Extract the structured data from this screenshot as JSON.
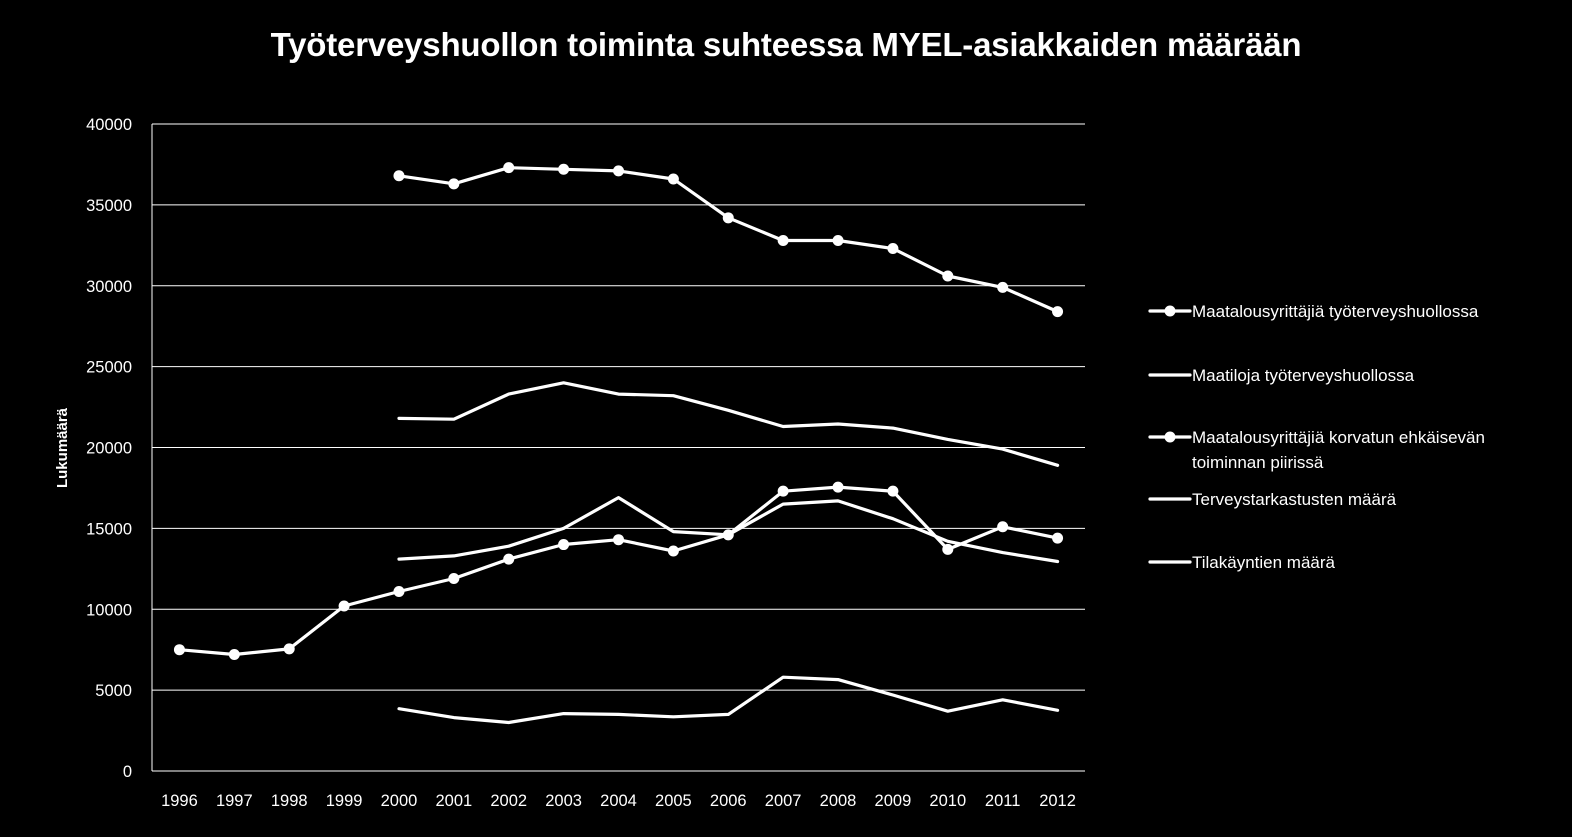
{
  "chart_data": {
    "type": "line",
    "title": "Työterveyshuollon toiminta suhteessa MYEL-asiakkaiden määrään",
    "ylabel": "Lukumäärä",
    "xlabel": "",
    "ylim": [
      0,
      40000
    ],
    "ytick_step": 5000,
    "grid": true,
    "legend_position": "right",
    "colors": {
      "background": "#000000",
      "line": "#ffffff",
      "grid": "#ffffff",
      "text": "#ffffff"
    },
    "categories": [
      "1996",
      "1997",
      "1998",
      "1999",
      "2000",
      "2001",
      "2002",
      "2003",
      "2004",
      "2005",
      "2006",
      "2007",
      "2008",
      "2009",
      "2010",
      "2011",
      "2012"
    ],
    "series": [
      {
        "name": "Maatalousyrittäjiä työterveyshuollossa",
        "marker": true,
        "values": [
          null,
          null,
          null,
          null,
          36800,
          36300,
          37300,
          37200,
          37100,
          36600,
          34200,
          32800,
          32800,
          32300,
          30600,
          29900,
          28400
        ]
      },
      {
        "name": "Maatiloja työterveyshuollossa",
        "marker": false,
        "values": [
          null,
          null,
          null,
          null,
          21800,
          21750,
          23300,
          24000,
          23300,
          23200,
          22300,
          21300,
          21450,
          21200,
          20500,
          19900,
          18900
        ]
      },
      {
        "name": "Maatalousyrittäjiä korvatun ehkäisevän toiminnan piirissä",
        "marker": true,
        "values": [
          7500,
          7200,
          7550,
          10200,
          11100,
          11900,
          13100,
          14000,
          14300,
          13600,
          14600,
          17300,
          17550,
          17300,
          13700,
          15100,
          14400
        ]
      },
      {
        "name": "Terveystarkastusten määrä",
        "marker": false,
        "values": [
          null,
          null,
          null,
          null,
          13100,
          13300,
          13900,
          15000,
          16900,
          14800,
          14600,
          16500,
          16700,
          15600,
          14200,
          13500,
          12950
        ]
      },
      {
        "name": "Tilakäyntien määrä",
        "marker": false,
        "values": [
          null,
          null,
          null,
          null,
          3850,
          3300,
          3000,
          3550,
          3500,
          3350,
          3500,
          5800,
          5650,
          4700,
          3700,
          4400,
          3750
        ]
      }
    ]
  }
}
